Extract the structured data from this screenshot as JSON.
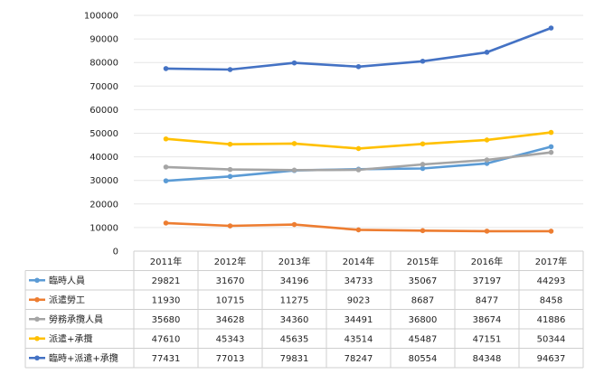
{
  "chart_data": {
    "type": "line",
    "title": "",
    "xlabel": "",
    "ylabel": "",
    "categories": [
      "2011年",
      "2012年",
      "2013年",
      "2014年",
      "2015年",
      "2016年",
      "2017年"
    ],
    "ylim": [
      0,
      100000
    ],
    "yticks": [
      0,
      10000,
      20000,
      30000,
      40000,
      50000,
      60000,
      70000,
      80000,
      90000,
      100000
    ],
    "grid": true,
    "legend": "data-table",
    "series": [
      {
        "name": "臨時人員",
        "color": "#5b9bd5",
        "values": [
          29821,
          31670,
          34196,
          34733,
          35067,
          37197,
          44293
        ]
      },
      {
        "name": "派遣勞工",
        "color": "#ed7d31",
        "values": [
          11930,
          10715,
          11275,
          9023,
          8687,
          8477,
          8458
        ]
      },
      {
        "name": "勞務承攬人員",
        "color": "#a5a5a5",
        "values": [
          35680,
          34628,
          34360,
          34491,
          36800,
          38674,
          41886
        ]
      },
      {
        "name": "派遣+承攬",
        "color": "#ffc000",
        "values": [
          47610,
          45343,
          45635,
          43514,
          45487,
          47151,
          50344
        ]
      },
      {
        "name": "臨時+派遣+承攬",
        "color": "#4472c4",
        "values": [
          77431,
          77013,
          79831,
          78247,
          80554,
          84348,
          94637
        ]
      }
    ]
  }
}
